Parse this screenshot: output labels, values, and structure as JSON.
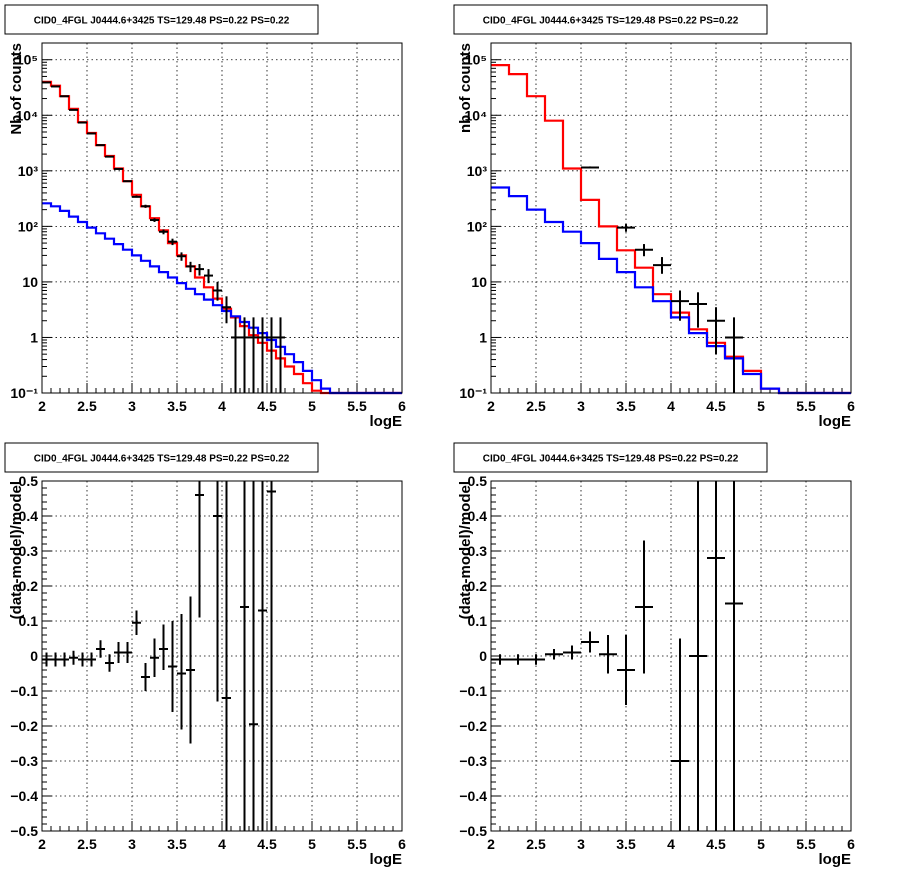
{
  "chart_data": [
    {
      "type": "line",
      "title": "CID0_4FGL J0444.6+3425 TS=129.48 PS=0.22 PS=0.22",
      "xlabel": "logE",
      "ylabel": "Nb of counts",
      "xlim": [
        2,
        6
      ],
      "ylim": [
        0.1,
        200000
      ],
      "yscale": "log",
      "grid": true,
      "bin_edges": [
        2,
        2.1,
        2.2,
        2.3,
        2.4,
        2.5,
        2.6,
        2.7,
        2.8,
        2.9,
        3,
        3.1,
        3.2,
        3.3,
        3.4,
        3.5,
        3.6,
        3.7,
        3.8,
        3.9,
        4,
        4.1,
        4.2,
        4.3,
        4.4,
        4.5,
        4.6,
        4.7,
        4.8,
        4.9,
        5,
        5.1,
        5.2,
        5.3,
        5.4,
        5.5,
        5.6,
        5.7,
        5.8,
        5.9,
        6
      ],
      "series": [
        {
          "color": "#ff0000",
          "values": [
            40000,
            34000,
            22000,
            13000,
            7500,
            4800,
            2900,
            1850,
            1100,
            650,
            370,
            230,
            140,
            85,
            50,
            30,
            19,
            12,
            8,
            5,
            3.3,
            2.3,
            1.6,
            1.1,
            0.8,
            0.58,
            0.42,
            0.3,
            0.22,
            0.15,
            0.11,
            0.1,
            0.1,
            0.1,
            0.1,
            0.1,
            0.1,
            0.1,
            0.1,
            0.1
          ]
        },
        {
          "color": "#0000ff",
          "values": [
            260,
            230,
            190,
            150,
            120,
            95,
            75,
            60,
            48,
            38,
            30,
            24,
            19,
            15,
            12,
            9.5,
            7.5,
            6,
            4.8,
            3.8,
            3,
            2.4,
            1.9,
            1.5,
            1.2,
            0.9,
            0.68,
            0.5,
            0.36,
            0.25,
            0.17,
            0.12,
            0.1,
            0.1,
            0.1,
            0.1,
            0.1,
            0.1,
            0.1,
            0.1
          ]
        }
      ],
      "points": {
        "x": [
          2.05,
          2.15,
          2.25,
          2.35,
          2.45,
          2.55,
          2.65,
          2.75,
          2.85,
          2.95,
          3.05,
          3.15,
          3.25,
          3.35,
          3.45,
          3.55,
          3.65,
          3.75,
          3.85,
          3.95,
          4.05,
          4.15,
          4.25,
          4.35,
          4.45,
          4.55,
          4.65
        ],
        "y": [
          39000,
          33000,
          22000,
          12500,
          7400,
          4700,
          2900,
          1800,
          1080,
          650,
          340,
          230,
          130,
          80,
          53,
          29,
          19,
          17,
          13,
          7,
          3.5,
          1,
          1,
          1,
          1,
          1,
          1
        ],
        "ylo": [
          38000,
          32000,
          21500,
          12300,
          7200,
          4600,
          2850,
          1760,
          1050,
          630,
          330,
          215,
          120,
          72,
          46,
          24,
          15,
          13,
          9.5,
          4.6,
          1.8,
          0.1,
          0.1,
          0.1,
          0.1,
          0.1,
          0.1
        ],
        "yhi": [
          40000,
          34000,
          22500,
          12700,
          7600,
          4800,
          2950,
          1840,
          1110,
          670,
          360,
          245,
          140,
          88,
          60,
          34,
          23,
          21,
          17,
          10,
          5.5,
          2.3,
          2.3,
          2.3,
          2.3,
          2.3,
          2.3
        ],
        "xerr": 0.05
      }
    },
    {
      "type": "line",
      "title": "CID0_4FGL J0444.6+3425 TS=129.48 PS=0.22 PS=0.22",
      "xlabel": "logE",
      "ylabel": "nb of counts",
      "xlim": [
        2,
        6
      ],
      "ylim": [
        0.1,
        200000
      ],
      "yscale": "log",
      "grid": true,
      "bin_edges": [
        2,
        2.2,
        2.4,
        2.6,
        2.8,
        3,
        3.2,
        3.4,
        3.6,
        3.8,
        4,
        4.2,
        4.4,
        4.6,
        4.8,
        5,
        5.2,
        5.4,
        5.6,
        5.8,
        6
      ],
      "series": [
        {
          "color": "#ff0000",
          "values": [
            80000,
            55000,
            22000,
            8000,
            1100,
            300,
            100,
            37,
            18,
            6,
            2.8,
            1.4,
            0.8,
            0.45,
            0.25,
            0.12,
            0.1,
            0.1,
            0.1,
            0.1
          ]
        },
        {
          "color": "#0000ff",
          "values": [
            500,
            350,
            200,
            120,
            80,
            50,
            26,
            15,
            8,
            4.5,
            2.3,
            1.2,
            0.7,
            0.42,
            0.22,
            0.12,
            0.1,
            0.1,
            0.1,
            0.1
          ]
        }
      ],
      "points": {
        "x": [
          3.1,
          3.5,
          3.7,
          3.9,
          4.1,
          4.3,
          4.5,
          4.7
        ],
        "y": [
          1150,
          95,
          38,
          20,
          4.5,
          4,
          2,
          1
        ],
        "ylo": [
          1100,
          80,
          29,
          14,
          2,
          1.5,
          0.5,
          0.1
        ],
        "yhi": [
          1200,
          110,
          48,
          28,
          7,
          6.5,
          3.5,
          2.3
        ],
        "xerr": 0.1
      }
    },
    {
      "type": "scatter",
      "title": "CID0_4FGL J0444.6+3425 TS=129.48 PS=0.22 PS=0.22",
      "xlabel": "logE",
      "ylabel": "(data-model)/model",
      "xlim": [
        2,
        6
      ],
      "ylim": [
        -0.5,
        0.5
      ],
      "grid": true,
      "points": {
        "x": [
          2.05,
          2.15,
          2.25,
          2.35,
          2.45,
          2.55,
          2.65,
          2.75,
          2.85,
          2.95,
          3.05,
          3.15,
          3.25,
          3.35,
          3.45,
          3.55,
          3.65,
          3.75,
          3.95,
          4.05,
          4.25,
          4.35,
          4.45,
          4.55
        ],
        "y": [
          -0.01,
          -0.01,
          -0.01,
          -0.005,
          -0.01,
          -0.01,
          0.02,
          -0.02,
          0.01,
          0.01,
          0.095,
          -0.06,
          -0.005,
          0.02,
          -0.03,
          -0.05,
          -0.04,
          0.46,
          0.4,
          -0.12,
          0.14,
          -0.195,
          0.13,
          0.47
        ],
        "ylo": [
          -0.03,
          -0.03,
          -0.03,
          -0.025,
          -0.03,
          -0.03,
          -0.005,
          -0.045,
          -0.02,
          -0.02,
          0.06,
          -0.1,
          -0.06,
          -0.04,
          -0.16,
          -0.21,
          -0.25,
          0.11,
          -0.13,
          -0.5,
          -0.5,
          -0.5,
          -0.5,
          -0.5
        ],
        "yhi": [
          0.01,
          0.01,
          0.01,
          0.015,
          0.01,
          0.01,
          0.045,
          0.005,
          0.04,
          0.04,
          0.13,
          -0.02,
          0.05,
          0.09,
          0.1,
          0.12,
          0.17,
          0.5,
          0.5,
          0.5,
          0.5,
          0.5,
          0.5,
          0.5
        ],
        "xerr": 0.05
      }
    },
    {
      "type": "scatter",
      "title": "CID0_4FGL J0444.6+3425 TS=129.48 PS=0.22 PS=0.22",
      "xlabel": "logE",
      "ylabel": "(data-model)/model",
      "xlim": [
        2,
        6
      ],
      "ylim": [
        -0.5,
        0.5
      ],
      "grid": true,
      "points": {
        "x": [
          2.1,
          2.3,
          2.5,
          2.7,
          2.9,
          3.1,
          3.3,
          3.5,
          3.7,
          4.1,
          4.3,
          4.5,
          4.7
        ],
        "y": [
          -0.01,
          -0.01,
          -0.01,
          0.005,
          0.01,
          0.04,
          0.005,
          -0.04,
          0.14,
          -0.3,
          0.0,
          0.28,
          0.15
        ],
        "ylo": [
          -0.025,
          -0.025,
          -0.025,
          -0.01,
          -0.01,
          0.01,
          -0.05,
          -0.14,
          -0.05,
          -0.5,
          -0.5,
          -0.5,
          -0.5
        ],
        "yhi": [
          0.005,
          0.005,
          0.005,
          0.02,
          0.03,
          0.07,
          0.06,
          0.06,
          0.33,
          0.05,
          0.5,
          0.5,
          0.5
        ],
        "xerr": 0.1
      }
    }
  ]
}
